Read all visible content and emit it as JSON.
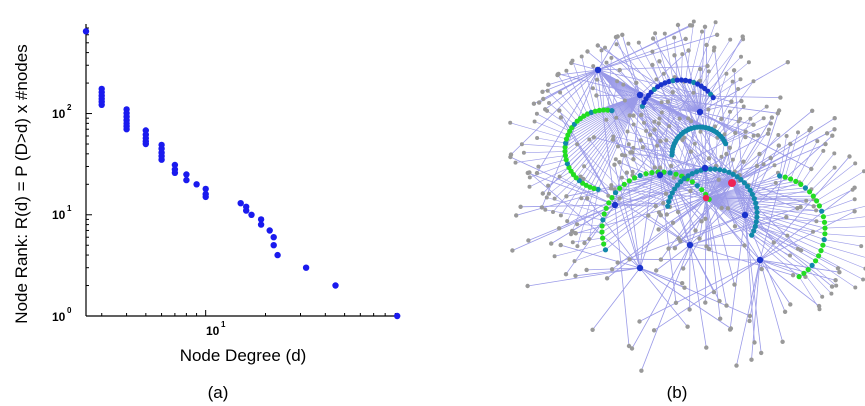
{
  "panels": {
    "left_caption": "(a)",
    "right_caption": "(b)"
  },
  "chart_data": {
    "type": "scatter",
    "xlabel": "Node Degree (d)",
    "ylabel": "Node Rank: R(d) = P (D>d) x #nodes",
    "x_scale": "log",
    "y_scale": "log",
    "xlim": [
      2.5,
      95
    ],
    "ylim": [
      1,
      700
    ],
    "x_ticks": [
      {
        "base": "10",
        "exp": "1",
        "value": 10
      }
    ],
    "y_ticks": [
      {
        "base": "10",
        "exp": "0",
        "value": 1
      },
      {
        "base": "10",
        "exp": "1",
        "value": 10
      },
      {
        "base": "10",
        "exp": "2",
        "value": 100
      }
    ],
    "grid": false,
    "marker_color": "#1a1aee",
    "points": [
      {
        "x": 2.5,
        "y": 650
      },
      {
        "x": 3,
        "y": 175
      },
      {
        "x": 3,
        "y": 162
      },
      {
        "x": 3,
        "y": 150
      },
      {
        "x": 3,
        "y": 140
      },
      {
        "x": 3,
        "y": 131
      },
      {
        "x": 3,
        "y": 122
      },
      {
        "x": 4,
        "y": 110
      },
      {
        "x": 4,
        "y": 101
      },
      {
        "x": 4,
        "y": 93
      },
      {
        "x": 4,
        "y": 86
      },
      {
        "x": 4,
        "y": 80
      },
      {
        "x": 4,
        "y": 75
      },
      {
        "x": 4,
        "y": 70
      },
      {
        "x": 5,
        "y": 68
      },
      {
        "x": 5,
        "y": 62
      },
      {
        "x": 5,
        "y": 57
      },
      {
        "x": 5,
        "y": 53
      },
      {
        "x": 5,
        "y": 50
      },
      {
        "x": 6,
        "y": 49
      },
      {
        "x": 6,
        "y": 45
      },
      {
        "x": 6,
        "y": 41
      },
      {
        "x": 6,
        "y": 38
      },
      {
        "x": 6,
        "y": 35
      },
      {
        "x": 7,
        "y": 31
      },
      {
        "x": 7,
        "y": 28
      },
      {
        "x": 7,
        "y": 26
      },
      {
        "x": 8,
        "y": 25
      },
      {
        "x": 8,
        "y": 22
      },
      {
        "x": 9,
        "y": 20
      },
      {
        "x": 10,
        "y": 18
      },
      {
        "x": 10,
        "y": 16
      },
      {
        "x": 10,
        "y": 15
      },
      {
        "x": 15,
        "y": 13
      },
      {
        "x": 16,
        "y": 12
      },
      {
        "x": 16,
        "y": 11
      },
      {
        "x": 17,
        "y": 10
      },
      {
        "x": 19,
        "y": 9
      },
      {
        "x": 19,
        "y": 8
      },
      {
        "x": 21,
        "y": 7
      },
      {
        "x": 22,
        "y": 6
      },
      {
        "x": 22,
        "y": 5
      },
      {
        "x": 23,
        "y": 4
      },
      {
        "x": 32,
        "y": 3
      },
      {
        "x": 45,
        "y": 2
      },
      {
        "x": 92,
        "y": 1
      }
    ]
  },
  "network": {
    "edge_color": "#9a9ae8",
    "leaf_color": "#999999",
    "node_colors": [
      "#22dd22",
      "#1188aa",
      "#1a33cc",
      "#ee2255"
    ],
    "hubs": 12
  }
}
